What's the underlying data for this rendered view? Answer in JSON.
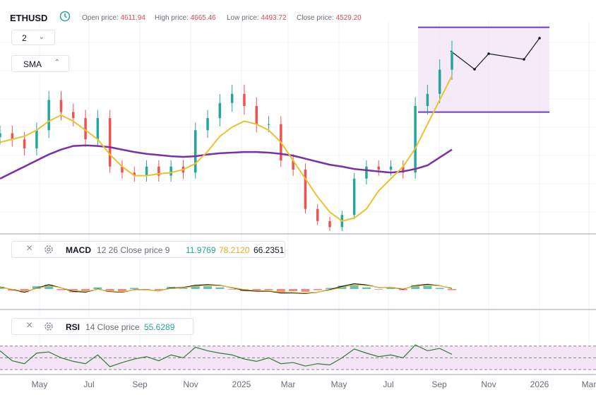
{
  "header": {
    "symbol": "ETHUSD",
    "open_label": "Open price:",
    "open_value": "4611.94",
    "high_label": "High price:",
    "high_value": "4665.46",
    "low_label": "Low price:",
    "low_value": "4493.72",
    "close_label": "Close price:",
    "close_value": "4529.20"
  },
  "interval_select": {
    "value": "2"
  },
  "overlay_button": {
    "label": "SMA"
  },
  "macd": {
    "name": "MACD",
    "params": "12 26 Close price 9",
    "v1": "11.9769",
    "v2": "78.2120",
    "v3": "66.2351"
  },
  "rsi": {
    "name": "RSI",
    "params": "14 Close price",
    "value": "55.6289"
  },
  "colors": {
    "up": "#26a69a",
    "down": "#ef5350",
    "sma_fast": "#e9c232",
    "sma_slow": "#7b2fa8",
    "rsi_line": "#2e7d32",
    "rsi_band": "#f3e5f5",
    "box": "#6a3fc4"
  },
  "chart_data": [
    {
      "type": "candlestick",
      "title": "ETHUSD",
      "x_ticks": [
        "May",
        "Jul",
        "Sep",
        "Nov",
        "2025",
        "Mar",
        "May",
        "Jul",
        "Sep",
        "Nov",
        "2026",
        "Mar"
      ],
      "x": [
        "2024-04-12",
        "2024-04-26",
        "2024-05-10",
        "2024-05-24",
        "2024-06-07",
        "2024-06-21",
        "2024-07-05",
        "2024-07-19",
        "2024-08-02",
        "2024-08-16",
        "2024-08-30",
        "2024-09-13",
        "2024-09-27",
        "2024-10-11",
        "2024-10-25",
        "2024-11-08",
        "2024-11-22",
        "2024-12-06",
        "2024-12-20",
        "2025-01-03",
        "2025-01-17",
        "2025-01-31",
        "2025-02-14",
        "2025-02-28",
        "2025-03-14",
        "2025-03-28",
        "2025-04-11",
        "2025-04-25",
        "2025-05-09",
        "2025-05-23",
        "2025-06-06",
        "2025-06-20",
        "2025-07-04",
        "2025-07-18",
        "2025-08-01",
        "2025-08-15",
        "2025-08-29",
        "2025-09-12"
      ],
      "close": [
        3150,
        3050,
        2900,
        3200,
        3700,
        3500,
        3400,
        3050,
        3400,
        2600,
        2500,
        2450,
        2600,
        2450,
        2600,
        2500,
        3200,
        3400,
        3650,
        3800,
        3600,
        3300,
        3300,
        2700,
        2550,
        1900,
        1700,
        1600,
        1800,
        2400,
        2600,
        2550,
        2600,
        2500,
        3600,
        3800,
        4200,
        4500
      ],
      "sma_fast": [
        3000,
        3050,
        3100,
        3200,
        3350,
        3450,
        3350,
        3200,
        3050,
        2800,
        2600,
        2450,
        2450,
        2480,
        2500,
        2550,
        2650,
        2850,
        3100,
        3250,
        3350,
        3300,
        3200,
        3000,
        2700,
        2400,
        2100,
        1850,
        1700,
        1750,
        1900,
        2200,
        2400,
        2600,
        2900,
        3300,
        3700,
        4100
      ],
      "sma_slow": [
        2400,
        2500,
        2600,
        2700,
        2800,
        2880,
        2940,
        2950,
        2940,
        2920,
        2880,
        2840,
        2810,
        2790,
        2770,
        2760,
        2770,
        2800,
        2820,
        2830,
        2840,
        2840,
        2830,
        2810,
        2780,
        2730,
        2680,
        2630,
        2600,
        2560,
        2540,
        2520,
        2500,
        2520,
        2560,
        2620,
        2750,
        2880
      ],
      "projection_box": {
        "y_low": 3500,
        "y_high": 4900
      },
      "ylim": [
        1500,
        5000
      ]
    },
    {
      "type": "bar",
      "title": "MACD",
      "ylim": [
        -400,
        400
      ],
      "values": [
        40,
        -30,
        -60,
        50,
        80,
        -20,
        -60,
        -40,
        30,
        -50,
        -40,
        20,
        -10,
        -30,
        40,
        20,
        60,
        50,
        30,
        -10,
        -40,
        -30,
        -20,
        -60,
        -40,
        -50,
        -20,
        20,
        60,
        80,
        30,
        -10,
        20,
        -20,
        70,
        60,
        20,
        -20
      ]
    },
    {
      "type": "line",
      "title": "RSI",
      "ylim": [
        0,
        100
      ],
      "values": [
        62,
        45,
        40,
        58,
        60,
        50,
        44,
        40,
        55,
        35,
        42,
        48,
        52,
        45,
        55,
        50,
        68,
        62,
        58,
        55,
        48,
        44,
        50,
        40,
        42,
        36,
        40,
        38,
        50,
        65,
        58,
        52,
        55,
        50,
        72,
        62,
        66,
        56
      ]
    }
  ]
}
